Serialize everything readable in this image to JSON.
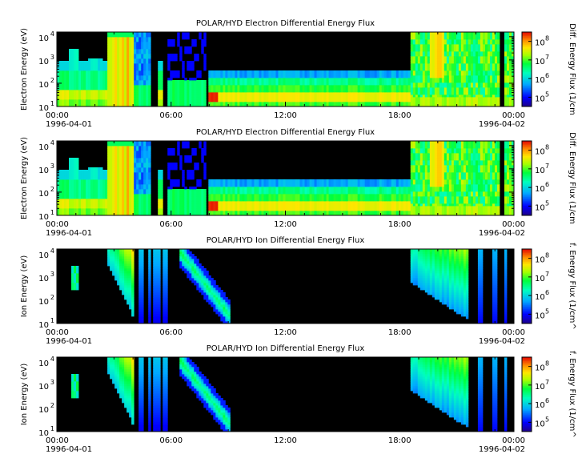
{
  "chart_data": [
    {
      "type": "heatmap",
      "title": "POLAR/HYD  Electron Differential Energy Flux",
      "ylabel": "Electron Energy (eV)",
      "colorbar_label": "Diff. Energy Flux (1/cm",
      "species": "electron",
      "x_ticks": [
        {
          "time": "00:00",
          "date": "1996-04-01"
        },
        {
          "time": "06:00",
          "date": ""
        },
        {
          "time": "12:00",
          "date": ""
        },
        {
          "time": "18:00",
          "date": ""
        },
        {
          "time": "00:00",
          "date": "1996-04-02"
        }
      ],
      "y_ticks": [
        {
          "base": "10",
          "exp": "1"
        },
        {
          "base": "10",
          "exp": "2"
        },
        {
          "base": "10",
          "exp": "3"
        },
        {
          "base": "10",
          "exp": "4"
        }
      ],
      "colorbar_ticks": [
        {
          "base": "10",
          "exp": "5"
        },
        {
          "base": "10",
          "exp": "6"
        },
        {
          "base": "10",
          "exp": "7"
        },
        {
          "base": "10",
          "exp": "8"
        }
      ],
      "x_range_hours": [
        0,
        24
      ],
      "y_range_log10_eV": [
        1,
        4.2
      ],
      "z_range_log10": [
        4.5,
        8.5
      ],
      "y_scale": "log",
      "colormap": "rainbow"
    },
    {
      "type": "heatmap",
      "title": "POLAR/HYD  Electron Differential Energy Flux",
      "ylabel": "Electron Energy (eV)",
      "colorbar_label": "Diff. Energy Flux (1/cm",
      "species": "electron",
      "x_ticks": [
        {
          "time": "00:00",
          "date": "1996-04-01"
        },
        {
          "time": "06:00",
          "date": ""
        },
        {
          "time": "12:00",
          "date": ""
        },
        {
          "time": "18:00",
          "date": ""
        },
        {
          "time": "00:00",
          "date": "1996-04-02"
        }
      ],
      "y_ticks": [
        {
          "base": "10",
          "exp": "1"
        },
        {
          "base": "10",
          "exp": "2"
        },
        {
          "base": "10",
          "exp": "3"
        },
        {
          "base": "10",
          "exp": "4"
        }
      ],
      "colorbar_ticks": [
        {
          "base": "10",
          "exp": "5"
        },
        {
          "base": "10",
          "exp": "6"
        },
        {
          "base": "10",
          "exp": "7"
        },
        {
          "base": "10",
          "exp": "8"
        }
      ],
      "x_range_hours": [
        0,
        24
      ],
      "y_range_log10_eV": [
        1,
        4.2
      ],
      "z_range_log10": [
        4.5,
        8.5
      ],
      "y_scale": "log",
      "colormap": "rainbow"
    },
    {
      "type": "heatmap",
      "title": "POLAR/HYD  Ion Differential Energy Flux",
      "ylabel": "Ion Energy (eV)",
      "colorbar_label": "f. Energy Flux (1/cm^",
      "species": "ion",
      "x_ticks": [
        {
          "time": "00:00",
          "date": "1996-04-01"
        },
        {
          "time": "06:00",
          "date": ""
        },
        {
          "time": "12:00",
          "date": ""
        },
        {
          "time": "18:00",
          "date": ""
        },
        {
          "time": "00:00",
          "date": "1996-04-02"
        }
      ],
      "y_ticks": [
        {
          "base": "10",
          "exp": "1"
        },
        {
          "base": "10",
          "exp": "2"
        },
        {
          "base": "10",
          "exp": "3"
        },
        {
          "base": "10",
          "exp": "4"
        }
      ],
      "colorbar_ticks": [
        {
          "base": "10",
          "exp": "5"
        },
        {
          "base": "10",
          "exp": "6"
        },
        {
          "base": "10",
          "exp": "7"
        },
        {
          "base": "10",
          "exp": "8"
        }
      ],
      "x_range_hours": [
        0,
        24
      ],
      "y_range_log10_eV": [
        1,
        4.2
      ],
      "z_range_log10": [
        4.5,
        8.5
      ],
      "y_scale": "log",
      "colormap": "rainbow"
    },
    {
      "type": "heatmap",
      "title": "POLAR/HYD  Ion Differential Energy Flux",
      "ylabel": "Ion Energy (eV)",
      "colorbar_label": "f. Energy Flux (1/cm^",
      "species": "ion",
      "x_ticks": [
        {
          "time": "00:00",
          "date": "1996-04-01"
        },
        {
          "time": "06:00",
          "date": ""
        },
        {
          "time": "12:00",
          "date": ""
        },
        {
          "time": "18:00",
          "date": ""
        },
        {
          "time": "00:00",
          "date": "1996-04-02"
        }
      ],
      "y_ticks": [
        {
          "base": "10",
          "exp": "1"
        },
        {
          "base": "10",
          "exp": "2"
        },
        {
          "base": "10",
          "exp": "3"
        },
        {
          "base": "10",
          "exp": "4"
        }
      ],
      "colorbar_ticks": [
        {
          "base": "10",
          "exp": "5"
        },
        {
          "base": "10",
          "exp": "6"
        },
        {
          "base": "10",
          "exp": "7"
        },
        {
          "base": "10",
          "exp": "8"
        }
      ],
      "x_range_hours": [
        0,
        24
      ],
      "y_range_log10_eV": [
        1,
        4.2
      ],
      "z_range_log10": [
        4.5,
        8.5
      ],
      "y_scale": "log",
      "colormap": "rainbow"
    }
  ]
}
